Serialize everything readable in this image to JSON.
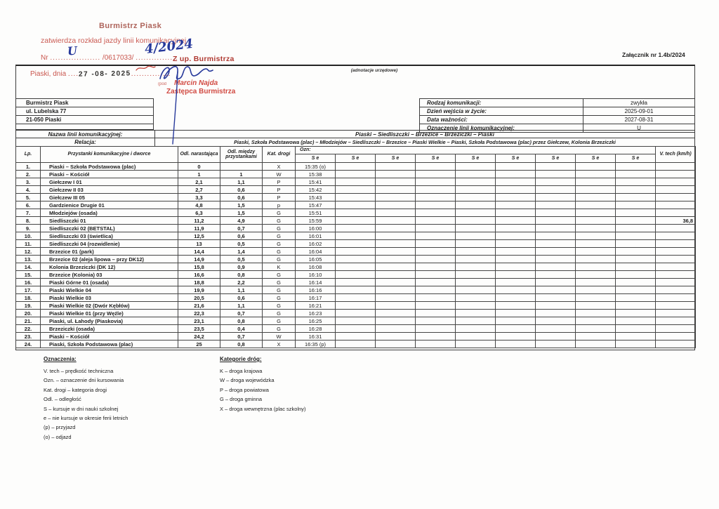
{
  "page": {
    "attachment_note": "Załącznik nr 1.4b/2024"
  },
  "colors": {
    "stamp_red": "#c4453c",
    "ink_blue": "#27399b",
    "border_dark": "#3c3c3c",
    "paper": "#fdfdfc"
  },
  "stamps": {
    "burmistrz_piask": "Burmistrz Piask",
    "zatwierdza": "zatwierdza rozkład jazdy linii komunikacyjnej",
    "nr_prefix": "Nr",
    "nr_dots1": "...................",
    "nr_number": "/0617033/",
    "nr_dots2": "................",
    "handwritten_nr": "U",
    "handwritten_year": "4/2024",
    "z_up": "Z up. Burmistrza",
    "piaski_dnia": "Piaski, dnia",
    "date_dots1": "....",
    "date_stamp": "27 -08- 2025",
    "date_dots2": "...............",
    "adnotacja": "(adnotacje urzędowe)",
    "podpis_fragment": "(pod",
    "signer_name": "Marcin Najda",
    "signer_title": "Zastępca Burmistrza"
  },
  "issuer": {
    "lines": [
      "Burmistrz Piask",
      "ul. Lubelska 77",
      "21-050 Piaski"
    ]
  },
  "meta": {
    "rows": [
      {
        "label": "Rodzaj komunikacji:",
        "value": "zwykła"
      },
      {
        "label": "Dzień wejścia w życie:",
        "value": "2025-09-01"
      },
      {
        "label": "Data ważności:",
        "value": "2027-08-31"
      },
      {
        "label": "Oznaczenie linii komunikacyjnej:",
        "value": "U"
      }
    ]
  },
  "line": {
    "nazwa_label": "Nazwa linii komunikacyjnej:",
    "nazwa_value": "Piaski – Siedliszczki – Brzezice – Brzeziczki – Piaski",
    "relacja_label": "Relacja:",
    "relacja_value": "Piaski, Szkoła Podstawowa (plac) – Młodziejów – Siedliszczki – Brzezice – Piaski Wielkie – Piaski, Szkoła Podstawowa (plac) przez Giełczew, Kolonia Brzeziczki"
  },
  "table": {
    "headers": {
      "lp": "Lp.",
      "stops": "Przystanki komunikacyjne i dworce",
      "odl_narastajaca": "Odl. narastająca",
      "odl_miedzy": "Odl. między przystankami",
      "kat_drogi": "Kat. drogi",
      "ozn": "Ozn:",
      "vtech": "V. tech (km/h)"
    },
    "se_label": "S e",
    "se_columns": 9,
    "rows": [
      {
        "lp": "1.",
        "stop": "Piaski – Szkoła Podstawowa (plac)",
        "odl_narastajaca": "0",
        "odl_miedzy": "",
        "kat": "X",
        "se": "15:35 (o)",
        "vtech": ""
      },
      {
        "lp": "2.",
        "stop": "Piaski – Kościół",
        "odl_narastajaca": "1",
        "odl_miedzy": "1",
        "kat": "W",
        "se": "15:38",
        "vtech": ""
      },
      {
        "lp": "3.",
        "stop": "Giełczew I 01",
        "odl_narastajaca": "2,1",
        "odl_miedzy": "1,1",
        "kat": "P",
        "se": "15:41",
        "vtech": ""
      },
      {
        "lp": "4.",
        "stop": "Giełczew II 03",
        "odl_narastajaca": "2,7",
        "odl_miedzy": "0,6",
        "kat": "P",
        "se": "15:42",
        "vtech": ""
      },
      {
        "lp": "5.",
        "stop": "Giełczew III 05",
        "odl_narastajaca": "3,3",
        "odl_miedzy": "0,6",
        "kat": "P",
        "se": "15:43",
        "vtech": ""
      },
      {
        "lp": "6.",
        "stop": "Gardzienice Drugie 01",
        "odl_narastajaca": "4,8",
        "odl_miedzy": "1,5",
        "kat": "p",
        "se": "15:47",
        "vtech": ""
      },
      {
        "lp": "7.",
        "stop": "Młodziejów (osada)",
        "odl_narastajaca": "6,3",
        "odl_miedzy": "1,5",
        "kat": "G",
        "se": "15:51",
        "vtech": ""
      },
      {
        "lp": "8.",
        "stop": "Siedliszczki 01",
        "odl_narastajaca": "11,2",
        "odl_miedzy": "4,9",
        "kat": "G",
        "se": "15:59",
        "vtech": "36,8"
      },
      {
        "lp": "9.",
        "stop": "Siedliszczki 02 (BETSTAL)",
        "odl_narastajaca": "11,9",
        "odl_miedzy": "0,7",
        "kat": "G",
        "se": "16:00",
        "vtech": ""
      },
      {
        "lp": "10.",
        "stop": "Siedliszczki 03 (świetlica)",
        "odl_narastajaca": "12,5",
        "odl_miedzy": "0,6",
        "kat": "G",
        "se": "16:01",
        "vtech": ""
      },
      {
        "lp": "11.",
        "stop": "Siedliszczki 04 (rozwidlenie)",
        "odl_narastajaca": "13",
        "odl_miedzy": "0,5",
        "kat": "G",
        "se": "16:02",
        "vtech": ""
      },
      {
        "lp": "12.",
        "stop": "Brzezice 01 (park)",
        "odl_narastajaca": "14,4",
        "odl_miedzy": "1,4",
        "kat": "G",
        "se": "16:04",
        "vtech": ""
      },
      {
        "lp": "13.",
        "stop": "Brzezice 02 (aleja lipowa – przy DK12)",
        "odl_narastajaca": "14,9",
        "odl_miedzy": "0,5",
        "kat": "G",
        "se": "16:05",
        "vtech": ""
      },
      {
        "lp": "14.",
        "stop": "Kolonia Brzeziczki (DK 12)",
        "odl_narastajaca": "15,8",
        "odl_miedzy": "0,9",
        "kat": "K",
        "se": "16:08",
        "vtech": ""
      },
      {
        "lp": "15.",
        "stop": "Brzezice (Kolonia) 03",
        "odl_narastajaca": "16,6",
        "odl_miedzy": "0,8",
        "kat": "G",
        "se": "16:10",
        "vtech": ""
      },
      {
        "lp": "16.",
        "stop": "Piaski Górne 01 (osada)",
        "odl_narastajaca": "18,8",
        "odl_miedzy": "2,2",
        "kat": "G",
        "se": "16:14",
        "vtech": ""
      },
      {
        "lp": "17.",
        "stop": "Piaski Wielkie 04",
        "odl_narastajaca": "19,9",
        "odl_miedzy": "1,1",
        "kat": "G",
        "se": "16:16",
        "vtech": ""
      },
      {
        "lp": "18.",
        "stop": "Piaski Wielkie 03",
        "odl_narastajaca": "20,5",
        "odl_miedzy": "0,6",
        "kat": "G",
        "se": "16:17",
        "vtech": ""
      },
      {
        "lp": "19.",
        "stop": "Piaski Wielkie 02 (Dwór Kębłów)",
        "odl_narastajaca": "21,6",
        "odl_miedzy": "1,1",
        "kat": "G",
        "se": "16:21",
        "vtech": ""
      },
      {
        "lp": "20.",
        "stop": "Piaski Wielkie 01 (przy Węźle)",
        "odl_narastajaca": "22,3",
        "odl_miedzy": "0,7",
        "kat": "G",
        "se": "16:23",
        "vtech": ""
      },
      {
        "lp": "21.",
        "stop": "Piaski, ul. Łahody (Piaskovia)",
        "odl_narastajaca": "23,1",
        "odl_miedzy": "0,8",
        "kat": "G",
        "se": "16:25",
        "vtech": ""
      },
      {
        "lp": "22.",
        "stop": "Brzeziczki (osada)",
        "odl_narastajaca": "23,5",
        "odl_miedzy": "0,4",
        "kat": "G",
        "se": "16:28",
        "vtech": ""
      },
      {
        "lp": "23.",
        "stop": "Piaski – Kościół",
        "odl_narastajaca": "24,2",
        "odl_miedzy": "0,7",
        "kat": "W",
        "se": "16:31",
        "vtech": ""
      },
      {
        "lp": "24.",
        "stop": "Piaski, Szkoła Podstawowa (plac)",
        "odl_narastajaca": "25",
        "odl_miedzy": "0,8",
        "kat": "X",
        "se": "16:35 (p)",
        "vtech": ""
      }
    ]
  },
  "legend": {
    "oznaczenia": {
      "title": "Oznaczenia:",
      "items": [
        "V. tech – prędkość techniczna",
        "Ozn. – oznaczenie dni kursowania",
        "Kat. drogi – kategoria drogi",
        "Odl. – odległość",
        "S – kursuje w dni nauki szkolnej",
        "e – nie kursuje w okresie ferii letnich",
        "(p) – przyjazd",
        "(o) – odjazd"
      ]
    },
    "kategorie": {
      "title": "Kategorie dróg:",
      "items": [
        "K – droga krajowa",
        "W – droga wojewódzka",
        "P – droga powiatowa",
        "G – droga gminna",
        "X – droga wewnętrzna (plac szkolny)"
      ]
    }
  }
}
